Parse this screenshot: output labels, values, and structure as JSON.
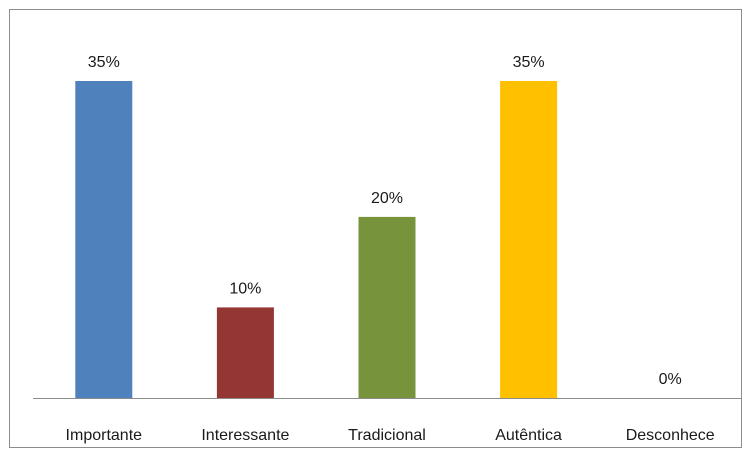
{
  "chart_data": {
    "type": "bar",
    "categories": [
      "Importante",
      "Interessante",
      "Tradicional",
      "Autêntica",
      "Desconhece"
    ],
    "values": [
      35,
      10,
      20,
      35,
      0
    ],
    "value_labels": [
      "35%",
      "10%",
      "20%",
      "35%",
      "0%"
    ],
    "colors": [
      "#4f81bd",
      "#943634",
      "#77933c",
      "#ffc000",
      "#4bacc6"
    ],
    "title": "",
    "xlabel": "",
    "ylabel": "",
    "ylim": [
      0,
      40
    ],
    "grid": false,
    "legend": "none",
    "y_axis_visible": false
  }
}
